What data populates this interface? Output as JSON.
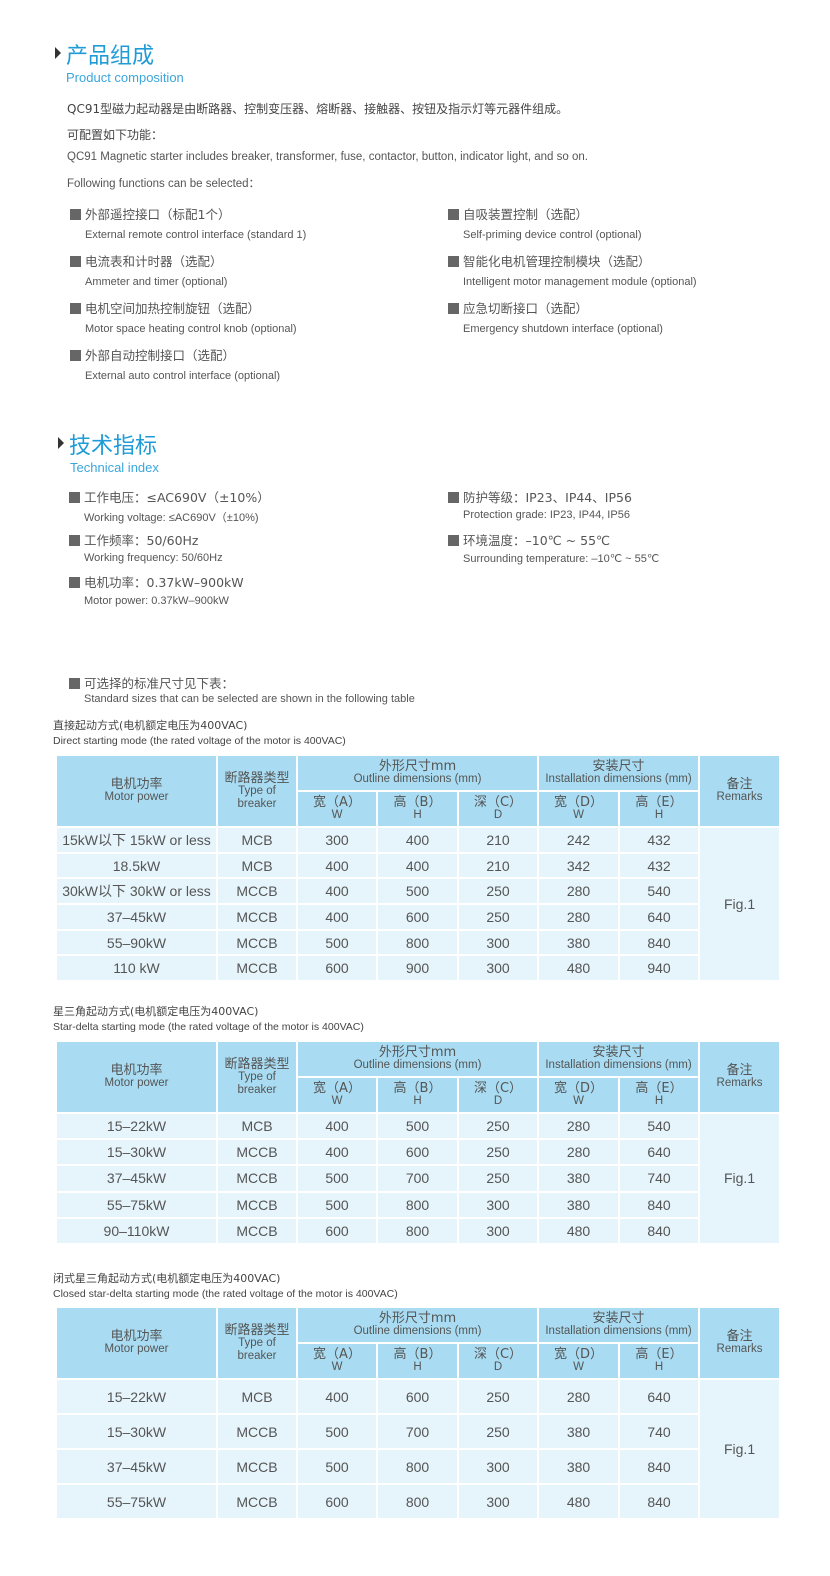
{
  "composition": {
    "title_zh": "产品组成",
    "title_en": "Product composition",
    "intro_zh": "QC91型磁力起动器是由断路器、控制变压器、熔断器、接触器、按钮及指示灯等元器件组成。",
    "config_zh": "可配置如下功能：",
    "intro_en": "QC91 Magnetic starter includes breaker, transformer, fuse, contactor, button, indicator light, and so on.",
    "config_en": "Following functions can be selected：",
    "left_items": [
      {
        "zh": "外部遥控接口（标配1个）",
        "en": "External remote control interface (standard 1)"
      },
      {
        "zh": "电流表和计时器（选配）",
        "en": "Ammeter and timer (optional)"
      },
      {
        "zh": "电机空间加热控制旋钮（选配）",
        "en": "Motor space heating control knob (optional)"
      },
      {
        "zh": "外部自动控制接口（选配）",
        "en": "External auto control interface (optional)"
      }
    ],
    "right_items": [
      {
        "zh": "自吸装置控制（选配）",
        "en": "Self-priming device control (optional)"
      },
      {
        "zh": "智能化电机管理控制模块（选配）",
        "en": "Intelligent motor management module (optional)"
      },
      {
        "zh": "应急切断接口（选配）",
        "en": "Emergency shutdown interface (optional)"
      }
    ]
  },
  "technical": {
    "title_zh": "技术指标",
    "title_en": "Technical index",
    "left_items": [
      {
        "zh": "工作电压：≤AC690V（±10%）",
        "en": "Working voltage: ≤AC690V（±10%)"
      },
      {
        "zh": "工作频率：50/60Hz",
        "en": "Working frequency: 50/60Hz"
      },
      {
        "zh": "电机功率：0.37kW–900kW",
        "en": "Motor power: 0.37kW–900kW"
      }
    ],
    "right_items": [
      {
        "zh": "防护等级：IP23、IP44、IP56",
        "en": "Protection grade: IP23, IP44, IP56"
      },
      {
        "zh": "环境温度：–10℃ ~ 55℃",
        "en": "Surrounding temperature: –10℃ ~ 55℃"
      }
    ],
    "sizes_zh": "可选择的标准尺寸见下表：",
    "sizes_en": "Standard sizes that can be selected are shown in the following table"
  },
  "table_header": {
    "power_zh": "电机功率",
    "power_en": "Motor power",
    "breaker_zh": "断路器类型",
    "breaker_en": "Type of breaker",
    "outline_zh": "外形尺寸mm",
    "outline_en": "Outline dimensions (mm)",
    "install_zh": "安装尺寸",
    "install_en": "Installation dimensions (mm)",
    "remarks_zh": "备注",
    "remarks_en": "Remarks",
    "sub": [
      {
        "zh": "宽（A）",
        "en": "W"
      },
      {
        "zh": "高（B）",
        "en": "H"
      },
      {
        "zh": "深（C）",
        "en": "D"
      },
      {
        "zh": "宽（D）",
        "en": "W"
      },
      {
        "zh": "高（E）",
        "en": "H"
      }
    ]
  },
  "tables": [
    {
      "caption_zh": "直接起动方式(电机额定电压为400VAC)",
      "caption_en": "Direct starting mode (the rated voltage of the motor is 400VAC)",
      "remark": "Fig.1",
      "rows": [
        [
          "15kW以下 15kW or less",
          "MCB",
          "300",
          "400",
          "210",
          "242",
          "432"
        ],
        [
          "18.5kW",
          "MCB",
          "400",
          "400",
          "210",
          "342",
          "432"
        ],
        [
          "30kW以下 30kW or less",
          "MCCB",
          "400",
          "500",
          "250",
          "280",
          "540"
        ],
        [
          "37–45kW",
          "MCCB",
          "400",
          "600",
          "250",
          "280",
          "640"
        ],
        [
          "55–90kW",
          "MCCB",
          "500",
          "800",
          "300",
          "380",
          "840"
        ],
        [
          "110 kW",
          "MCCB",
          "600",
          "900",
          "300",
          "480",
          "940"
        ]
      ]
    },
    {
      "caption_zh": "星三角起动方式(电机额定电压为400VAC)",
      "caption_en": "Star-delta starting mode (the rated voltage of the motor is 400VAC)",
      "remark": "Fig.1",
      "rows": [
        [
          "15–22kW",
          "MCB",
          "400",
          "500",
          "250",
          "280",
          "540"
        ],
        [
          "15–30kW",
          "MCCB",
          "400",
          "600",
          "250",
          "280",
          "640"
        ],
        [
          "37–45kW",
          "MCCB",
          "500",
          "700",
          "250",
          "380",
          "740"
        ],
        [
          "55–75kW",
          "MCCB",
          "500",
          "800",
          "300",
          "380",
          "840"
        ],
        [
          "90–110kW",
          "MCCB",
          "600",
          "800",
          "300",
          "480",
          "840"
        ]
      ]
    },
    {
      "caption_zh": "闭式星三角起动方式(电机额定电压为400VAC)",
      "caption_en": "Closed star-delta starting mode (the rated voltage of the motor is 400VAC)",
      "remark": "Fig.1",
      "rows": [
        [
          "15–22kW",
          "MCB",
          "400",
          "600",
          "250",
          "280",
          "640"
        ],
        [
          "15–30kW",
          "MCCB",
          "500",
          "700",
          "250",
          "380",
          "740"
        ],
        [
          "37–45kW",
          "MCCB",
          "500",
          "800",
          "300",
          "380",
          "840"
        ],
        [
          "55–75kW",
          "MCCB",
          "600",
          "800",
          "300",
          "480",
          "840"
        ]
      ]
    }
  ]
}
